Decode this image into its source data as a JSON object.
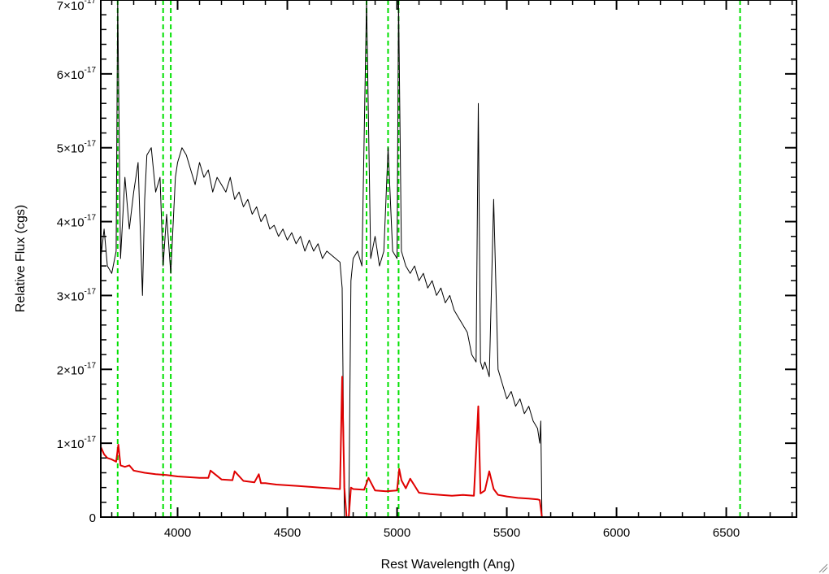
{
  "chart_data": {
    "type": "line",
    "title": "",
    "xlabel": "Rest Wavelength (Ang)",
    "ylabel": "Relative Flux (cgs)",
    "xlim": [
      3650,
      6820
    ],
    "ylim": [
      0,
      7e-17
    ],
    "xticks": [
      {
        "value": 4000,
        "label": "4000"
      },
      {
        "value": 4500,
        "label": "4500"
      },
      {
        "value": 5000,
        "label": "5000"
      },
      {
        "value": 5500,
        "label": "5500"
      },
      {
        "value": 6000,
        "label": "6000"
      },
      {
        "value": 6500,
        "label": "6500"
      }
    ],
    "yticks": [
      {
        "value": 0,
        "label": "0",
        "sup": ""
      },
      {
        "value": 1e-17,
        "label": "1×10",
        "sup": "-17"
      },
      {
        "value": 2e-17,
        "label": "2×10",
        "sup": "-17"
      },
      {
        "value": 3e-17,
        "label": "3×10",
        "sup": "-17"
      },
      {
        "value": 4e-17,
        "label": "4×10",
        "sup": "-17"
      },
      {
        "value": 5e-17,
        "label": "5×10",
        "sup": "-17"
      },
      {
        "value": 6e-17,
        "label": "6×10",
        "sup": "-17"
      },
      {
        "value": 7e-17,
        "label": "7×10",
        "sup": "-17"
      }
    ],
    "vlines": {
      "color": "#00e000",
      "style": "dashed",
      "x": [
        3727,
        3934,
        3969,
        4861,
        4959,
        5007,
        6563
      ]
    },
    "series": [
      {
        "color": "#000000",
        "x": [
          3650,
          3665,
          3680,
          3700,
          3720,
          3727,
          3740,
          3760,
          3780,
          3800,
          3820,
          3840,
          3850,
          3860,
          3880,
          3900,
          3920,
          3934,
          3950,
          3969,
          3990,
          4000,
          4020,
          4040,
          4060,
          4080,
          4100,
          4120,
          4140,
          4160,
          4180,
          4200,
          4220,
          4240,
          4260,
          4280,
          4300,
          4320,
          4340,
          4360,
          4380,
          4400,
          4420,
          4440,
          4460,
          4480,
          4500,
          4520,
          4540,
          4560,
          4580,
          4600,
          4620,
          4640,
          4660,
          4680,
          4700,
          4720,
          4740,
          4750,
          4760,
          4770,
          4780,
          4790,
          4800,
          4820,
          4840,
          4861,
          4880,
          4900,
          4920,
          4940,
          4959,
          4980,
          5000,
          5007,
          5020,
          5040,
          5060,
          5080,
          5100,
          5120,
          5140,
          5160,
          5180,
          5200,
          5220,
          5240,
          5260,
          5280,
          5300,
          5320,
          5340,
          5360,
          5370,
          5380,
          5390,
          5400,
          5420,
          5440,
          5460,
          5480,
          5500,
          5520,
          5540,
          5560,
          5580,
          5600,
          5620,
          5640,
          5650,
          5655,
          5660,
          6820
        ],
        "y": [
          3.5e-17,
          3.9e-17,
          3.4e-17,
          3.3e-17,
          3.6e-17,
          7e-17,
          3.5e-17,
          4.6e-17,
          3.9e-17,
          4.4e-17,
          4.8e-17,
          3e-17,
          4.3e-17,
          4.9e-17,
          5e-17,
          4.4e-17,
          4.6e-17,
          3.4e-17,
          4.1e-17,
          3.3e-17,
          4.6e-17,
          4.8e-17,
          5e-17,
          4.9e-17,
          4.7e-17,
          4.5e-17,
          4.8e-17,
          4.6e-17,
          4.7e-17,
          4.4e-17,
          4.6e-17,
          4.5e-17,
          4.4e-17,
          4.6e-17,
          4.3e-17,
          4.4e-17,
          4.2e-17,
          4.3e-17,
          4.1e-17,
          4.2e-17,
          4e-17,
          4.1e-17,
          3.9e-17,
          3.95e-17,
          3.8e-17,
          3.9e-17,
          3.75e-17,
          3.85e-17,
          3.7e-17,
          3.8e-17,
          3.6e-17,
          3.75e-17,
          3.6e-17,
          3.7e-17,
          3.5e-17,
          3.6e-17,
          3.55e-17,
          3.5e-17,
          3.45e-17,
          3.1e-17,
          0.0,
          0.0,
          0.0,
          3.2e-17,
          3.5e-17,
          3.6e-17,
          3.4e-17,
          7e-17,
          3.5e-17,
          3.8e-17,
          3.4e-17,
          3.6e-17,
          5e-17,
          3.6e-17,
          3.5e-17,
          7e-17,
          3.6e-17,
          3.4e-17,
          3.3e-17,
          3.4e-17,
          3.2e-17,
          3.3e-17,
          3.1e-17,
          3.2e-17,
          3e-17,
          3.1e-17,
          2.9e-17,
          3e-17,
          2.8e-17,
          2.7e-17,
          2.6e-17,
          2.5e-17,
          2.2e-17,
          2.1e-17,
          5.6e-17,
          2.1e-17,
          2e-17,
          2.1e-17,
          1.9e-17,
          4.3e-17,
          2e-17,
          1.8e-17,
          1.6e-17,
          1.7e-17,
          1.5e-17,
          1.6e-17,
          1.4e-17,
          1.5e-17,
          1.3e-17,
          1.2e-17,
          1e-17,
          1.3e-17,
          0.0,
          0.0
        ]
      },
      {
        "color": "#e00000",
        "x": [
          3650,
          3665,
          3680,
          3700,
          3720,
          3730,
          3740,
          3760,
          3780,
          3800,
          3850,
          3900,
          3950,
          4000,
          4050,
          4100,
          4140,
          4150,
          4200,
          4250,
          4260,
          4300,
          4350,
          4370,
          4380,
          4400,
          4450,
          4500,
          4550,
          4600,
          4650,
          4700,
          4740,
          4750,
          4760,
          4770,
          4780,
          4790,
          4800,
          4850,
          4870,
          4900,
          4950,
          5000,
          5010,
          5020,
          5040,
          5060,
          5100,
          5150,
          5200,
          5250,
          5300,
          5350,
          5370,
          5380,
          5400,
          5420,
          5440,
          5460,
          5500,
          5550,
          5600,
          5640,
          5650,
          5660,
          6820
        ],
        "y": [
          9.5e-18,
          8.5e-18,
          8e-18,
          7.8e-18,
          7.5e-18,
          9.8e-18,
          7e-18,
          6.8e-18,
          7e-18,
          6.3e-18,
          6e-18,
          5.8e-18,
          5.7e-18,
          5.5e-18,
          5.4e-18,
          5.3e-18,
          5.3e-18,
          6.3e-18,
          5.1e-18,
          5e-18,
          6.2e-18,
          4.9e-18,
          4.7e-18,
          5.8e-18,
          4.6e-18,
          4.6e-18,
          4.4e-18,
          4.3e-18,
          4.2e-18,
          4.1e-18,
          4e-18,
          3.9e-18,
          3.8e-18,
          1.9e-17,
          4e-18,
          0.0,
          0.0,
          4e-18,
          3.8e-18,
          3.7e-18,
          5.3e-18,
          3.6e-18,
          3.5e-18,
          3.6e-18,
          6.5e-18,
          5e-18,
          3.9e-18,
          5.2e-18,
          3.3e-18,
          3.1e-18,
          3e-18,
          2.9e-18,
          3e-18,
          2.9e-18,
          1.5e-17,
          3.2e-18,
          3.6e-18,
          6.2e-18,
          3.8e-18,
          3e-18,
          2.8e-18,
          2.6e-18,
          2.5e-18,
          2.4e-18,
          2.3e-18,
          0.0,
          0.0
        ]
      }
    ]
  }
}
